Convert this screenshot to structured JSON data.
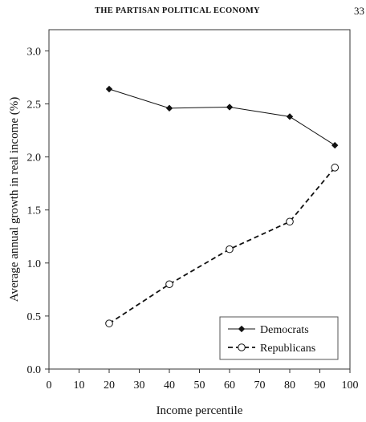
{
  "page_header": {
    "running_title": "THE PARTISAN POLITICAL ECONOMY",
    "page_number": "33"
  },
  "chart_data": {
    "type": "line",
    "title": "",
    "xlabel": "Income percentile",
    "ylabel": "Average annual growth in real income (%)",
    "xlim": [
      0,
      100
    ],
    "ylim": [
      0.0,
      3.2
    ],
    "x_ticks": [
      0,
      10,
      20,
      30,
      40,
      50,
      60,
      70,
      80,
      90,
      100
    ],
    "y_ticks": [
      0.0,
      0.5,
      1.0,
      1.5,
      2.0,
      2.5,
      3.0
    ],
    "x_tick_labels": [
      "0",
      "10",
      "20",
      "30",
      "40",
      "50",
      "60",
      "70",
      "80",
      "90",
      "100"
    ],
    "y_tick_labels": [
      "0.0",
      "0.5",
      "1.0",
      "1.5",
      "2.0",
      "2.5",
      "3.0"
    ],
    "grid": false,
    "legend_position": "bottom-right",
    "series": [
      {
        "name": "Democrats",
        "x": [
          20,
          40,
          60,
          80,
          95
        ],
        "y": [
          2.64,
          2.46,
          2.47,
          2.38,
          2.11
        ],
        "marker": "filled-diamond",
        "line_style": "solid",
        "color": "#111111"
      },
      {
        "name": "Republicans",
        "x": [
          20,
          40,
          60,
          80,
          95
        ],
        "y": [
          0.43,
          0.8,
          1.13,
          1.39,
          1.9
        ],
        "marker": "open-circle",
        "line_style": "dashed",
        "color": "#111111"
      }
    ]
  }
}
